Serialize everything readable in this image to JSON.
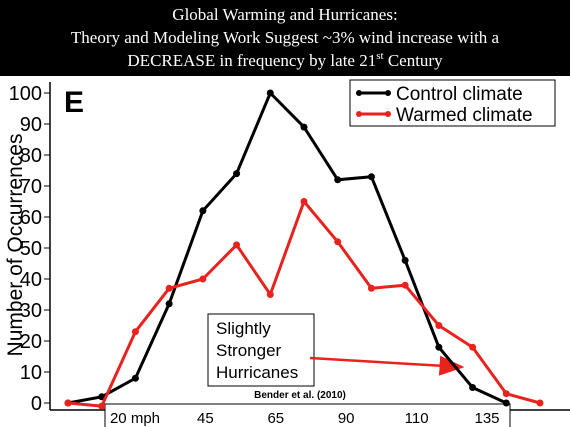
{
  "chart_data": {
    "type": "line",
    "title_lines": [
      "Global Warming  and Hurricanes:",
      "Theory and Modeling Work Suggest ~3% wind increase with a"
    ],
    "title_last": {
      "text": "DECREASE in frequency by late 21",
      "sup": "st",
      "after": " Century"
    },
    "panel_label": "E",
    "y_label": "Number of Occurrences",
    "categories": [
      null,
      null,
      null,
      null,
      null,
      null,
      null,
      null,
      null,
      null,
      null,
      null,
      null,
      null,
      null
    ],
    "x_tick_labels": [
      "20 mph",
      "45",
      "65",
      "90",
      "110",
      "135"
    ],
    "series": [
      {
        "name": "Control climate",
        "color": "#000000",
        "values": [
          0,
          2,
          8,
          32,
          62,
          74,
          100,
          89,
          72,
          73,
          46,
          18,
          5,
          0,
          null
        ]
      },
      {
        "name": "Warmed climate",
        "color": "#e8231e",
        "values": [
          0,
          -1,
          23,
          37,
          40,
          51,
          35,
          65,
          52,
          37,
          38,
          25,
          18,
          3,
          0
        ]
      }
    ],
    "ylim": [
      0,
      100
    ],
    "yticks": [
      0,
      10,
      20,
      30,
      40,
      50,
      60,
      70,
      80,
      90,
      100
    ],
    "annotation": [
      "Slightly",
      "Stronger",
      "Hurricanes"
    ],
    "source": "Bender et al. (2010)"
  }
}
